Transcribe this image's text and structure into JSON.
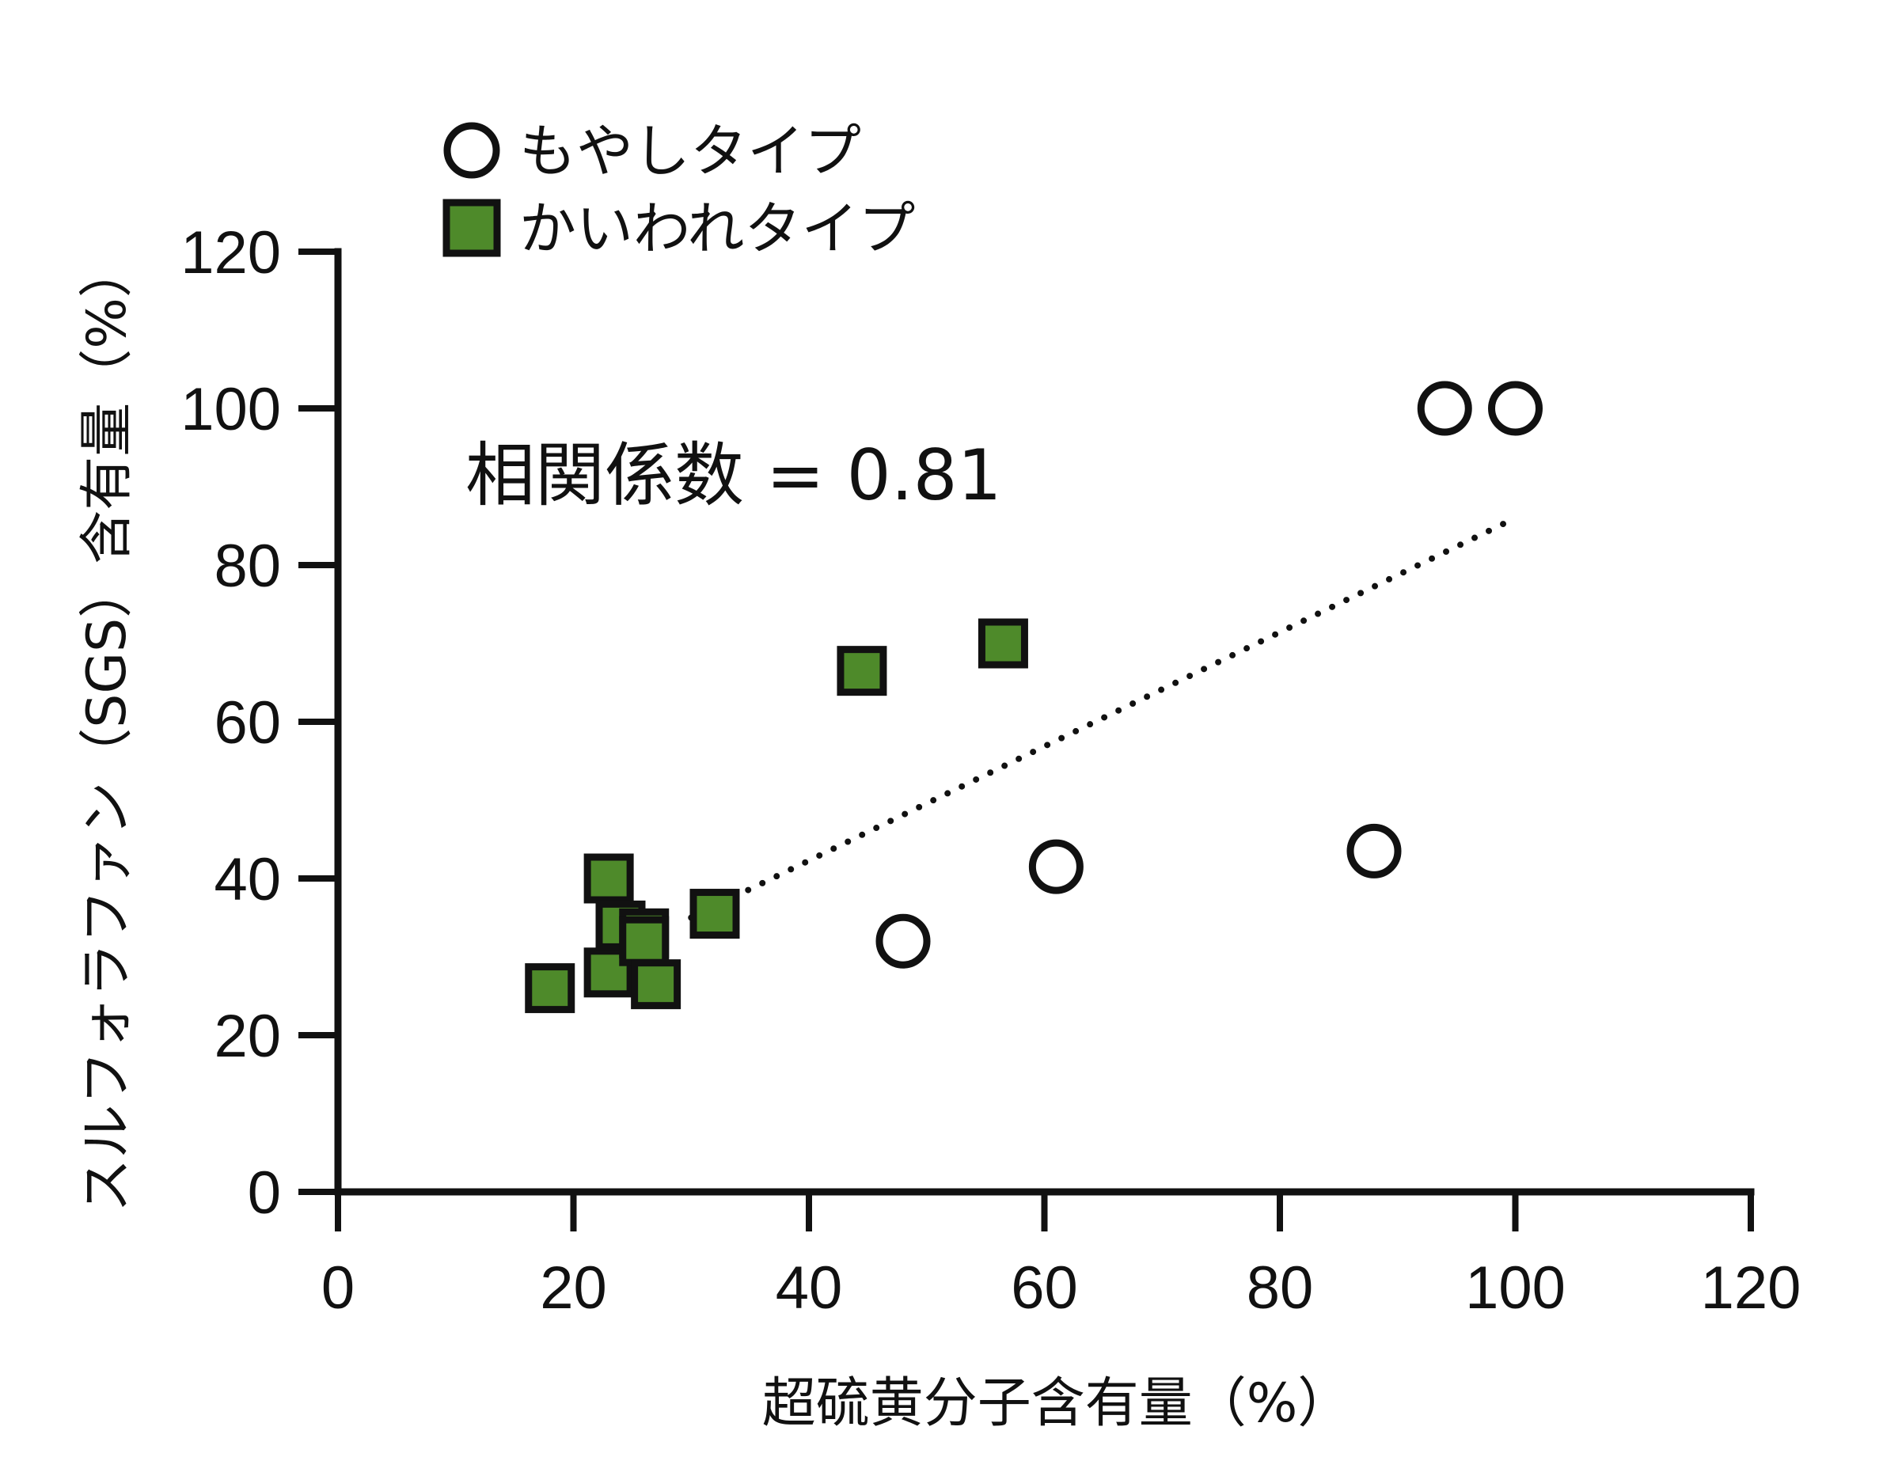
{
  "chart_data": {
    "type": "scatter",
    "xlabel": "超硫黄分子含有量（%）",
    "ylabel": "スルフォラファン（SGS）含有量（%）",
    "xlim": [
      0,
      120
    ],
    "ylim": [
      0,
      120
    ],
    "x_ticks": [
      "0",
      "20",
      "40",
      "60",
      "80",
      "100",
      "120"
    ],
    "y_ticks": [
      "0",
      "20",
      "40",
      "60",
      "80",
      "100",
      "120"
    ],
    "grid": false,
    "legend_position": "top-left",
    "annotation": "相関係数 = 0.81",
    "trendline": {
      "style": "dotted",
      "from": [
        30,
        35
      ],
      "to": [
        100,
        86
      ]
    },
    "series": [
      {
        "name": "もやしタイプ",
        "marker": "circle-open",
        "color": "#ffffff",
        "points": [
          [
            48,
            32
          ],
          [
            61,
            41.5
          ],
          [
            88,
            43.5
          ],
          [
            94,
            100
          ],
          [
            100,
            100
          ]
        ]
      },
      {
        "name": "かいわれタイプ",
        "marker": "square",
        "color": "#4e8a2a",
        "points": [
          [
            18,
            26
          ],
          [
            23,
            40
          ],
          [
            23,
            28
          ],
          [
            24,
            34
          ],
          [
            26,
            33
          ],
          [
            26,
            32
          ],
          [
            27,
            26.5
          ],
          [
            32,
            35.5
          ],
          [
            44.5,
            66.5
          ],
          [
            56.5,
            70
          ]
        ]
      }
    ]
  }
}
